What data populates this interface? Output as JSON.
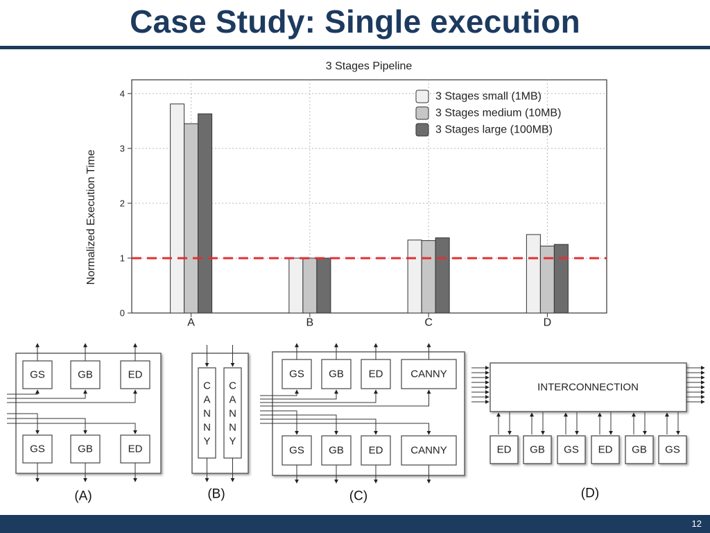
{
  "slide": {
    "title": "Case Study: Single execution",
    "page_number": "12"
  },
  "chart_data": {
    "type": "bar",
    "title": "3 Stages Pipeline",
    "xlabel": "",
    "ylabel": "Normalized Execution Time",
    "categories": [
      "A",
      "B",
      "C",
      "D"
    ],
    "series": [
      {
        "name": "3 Stages small (1MB)",
        "color": "#f0f0f0",
        "values": [
          3.81,
          1.0,
          1.33,
          1.43
        ]
      },
      {
        "name": "3 Stages medium (10MB)",
        "color": "#c6c6c6",
        "values": [
          3.45,
          1.0,
          1.32,
          1.22
        ]
      },
      {
        "name": "3 Stages large (100MB)",
        "color": "#6c6c6c",
        "values": [
          3.63,
          1.0,
          1.37,
          1.25
        ]
      }
    ],
    "ylim": [
      0,
      4.25
    ],
    "yticks": [
      "0",
      "1",
      "2",
      "3",
      "4"
    ],
    "reference_line": {
      "value": 1,
      "color": "#e03030",
      "style": "dashed"
    },
    "grid": true,
    "legend_position": "top-right"
  },
  "diagrams": {
    "a": {
      "caption": "(A)",
      "top": [
        "GS",
        "GB",
        "ED"
      ],
      "bottom": [
        "GS",
        "GB",
        "ED"
      ]
    },
    "b": {
      "caption": "(B)",
      "columns": [
        [
          "C",
          "A",
          "N",
          "N",
          "Y"
        ],
        [
          "C",
          "A",
          "N",
          "N",
          "Y"
        ]
      ]
    },
    "c": {
      "caption": "(C)",
      "top": [
        "GS",
        "GB",
        "ED",
        "CANNY"
      ],
      "bottom": [
        "GS",
        "GB",
        "ED",
        "CANNY"
      ]
    },
    "d": {
      "caption": "(D)",
      "interconnect_label": "INTERCONNECTION",
      "units": [
        "ED",
        "GB",
        "GS",
        "ED",
        "GB",
        "GS"
      ]
    }
  }
}
